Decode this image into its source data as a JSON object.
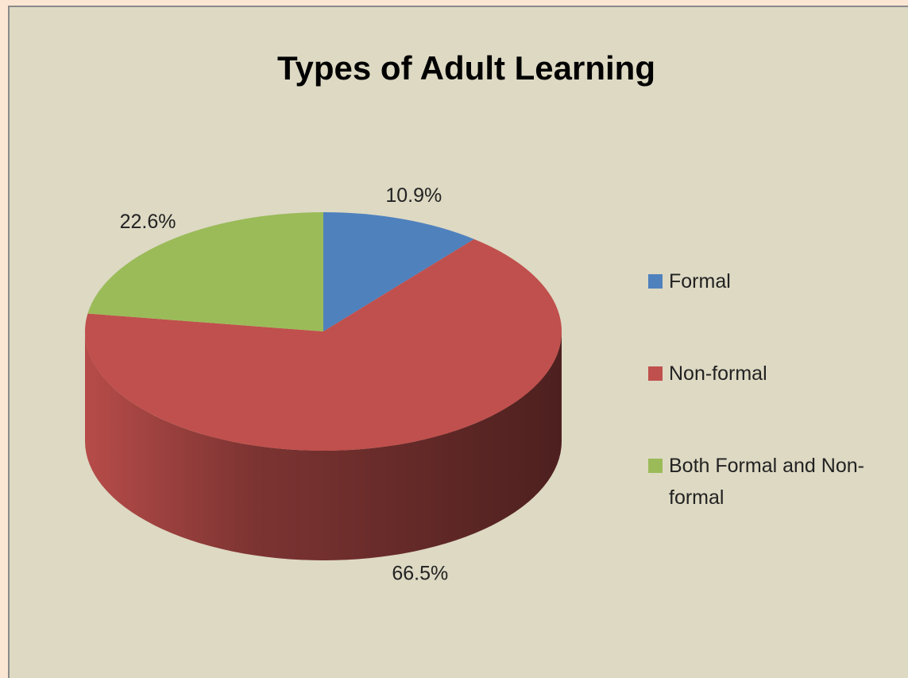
{
  "chart_data": {
    "type": "pie",
    "title": "Types of Adult Learning",
    "categories": [
      "Formal",
      "Non-formal",
      "Both Formal and Non-formal"
    ],
    "values": [
      10.9,
      66.5,
      22.6
    ],
    "value_labels": [
      "10.9%",
      "66.5%",
      "22.6%"
    ],
    "colors": [
      "#4f81bd",
      "#c0504d",
      "#9bbb59"
    ],
    "legend": "right"
  }
}
